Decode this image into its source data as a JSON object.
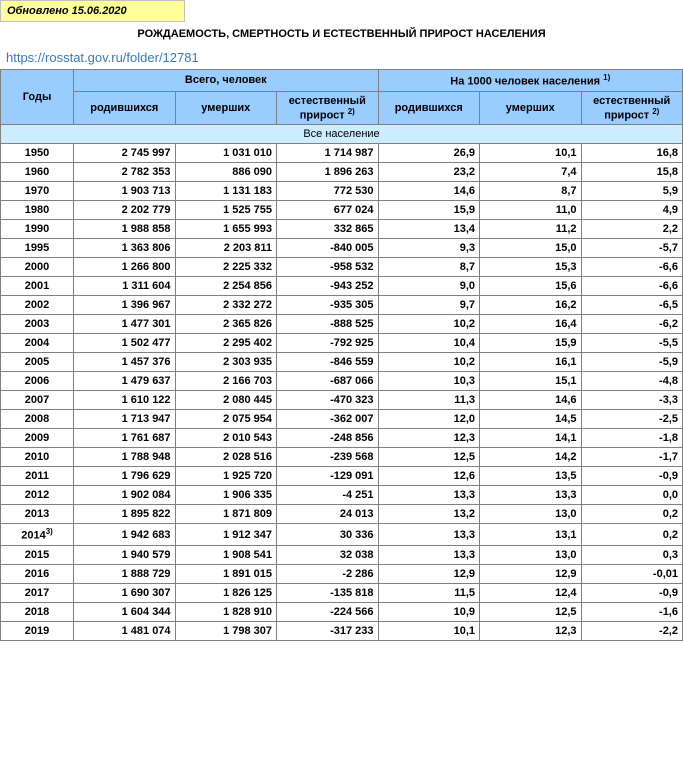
{
  "updated_label": "Обновлено 15.06.2020",
  "title": "РОЖДАЕМОСТЬ, СМЕРТНОСТЬ И ЕСТЕСТВЕННЫЙ ПРИРОСТ НАСЕЛЕНИЯ",
  "source_url": "https://rosstat.gov.ru/folder/12781",
  "header": {
    "years": "Годы",
    "total_people": "Всего, человек",
    "per_1000": "На 1000 человек населения",
    "born": "родившихся",
    "died": "умерших",
    "natural": "естественный прирост",
    "note1": "1)",
    "note2": "2)",
    "note3": "3)"
  },
  "section_label": "Все население",
  "rows": [
    {
      "year": "1950",
      "born": "2 745 997",
      "died": "1 031 010",
      "nat": "1 714 987",
      "rborn": "26,9",
      "rdied": "10,1",
      "rnat": "16,8"
    },
    {
      "year": "1960",
      "born": "2 782 353",
      "died": "886 090",
      "nat": "1 896 263",
      "rborn": "23,2",
      "rdied": "7,4",
      "rnat": "15,8"
    },
    {
      "year": "1970",
      "born": "1 903 713",
      "died": "1 131 183",
      "nat": "772 530",
      "rborn": "14,6",
      "rdied": "8,7",
      "rnat": "5,9"
    },
    {
      "year": "1980",
      "born": "2 202 779",
      "died": "1 525 755",
      "nat": "677 024",
      "rborn": "15,9",
      "rdied": "11,0",
      "rnat": "4,9"
    },
    {
      "year": "1990",
      "born": "1 988 858",
      "died": "1 655 993",
      "nat": "332 865",
      "rborn": "13,4",
      "rdied": "11,2",
      "rnat": "2,2"
    },
    {
      "year": "1995",
      "born": "1 363 806",
      "died": "2 203 811",
      "nat": "-840 005",
      "rborn": "9,3",
      "rdied": "15,0",
      "rnat": "-5,7"
    },
    {
      "year": "2000",
      "born": "1 266 800",
      "died": "2 225 332",
      "nat": "-958 532",
      "rborn": "8,7",
      "rdied": "15,3",
      "rnat": "-6,6"
    },
    {
      "year": "2001",
      "born": "1 311 604",
      "died": "2 254 856",
      "nat": "-943 252",
      "rborn": "9,0",
      "rdied": "15,6",
      "rnat": "-6,6"
    },
    {
      "year": "2002",
      "born": "1 396 967",
      "died": "2 332 272",
      "nat": "-935 305",
      "rborn": "9,7",
      "rdied": "16,2",
      "rnat": "-6,5"
    },
    {
      "year": "2003",
      "born": "1 477 301",
      "died": "2 365 826",
      "nat": "-888 525",
      "rborn": "10,2",
      "rdied": "16,4",
      "rnat": "-6,2"
    },
    {
      "year": "2004",
      "born": "1 502 477",
      "died": "2 295 402",
      "nat": "-792 925",
      "rborn": "10,4",
      "rdied": "15,9",
      "rnat": "-5,5"
    },
    {
      "year": "2005",
      "born": "1 457 376",
      "died": "2 303 935",
      "nat": "-846 559",
      "rborn": "10,2",
      "rdied": "16,1",
      "rnat": "-5,9"
    },
    {
      "year": "2006",
      "born": "1 479 637",
      "died": "2 166 703",
      "nat": "-687 066",
      "rborn": "10,3",
      "rdied": "15,1",
      "rnat": "-4,8"
    },
    {
      "year": "2007",
      "born": "1 610 122",
      "died": "2 080 445",
      "nat": "-470 323",
      "rborn": "11,3",
      "rdied": "14,6",
      "rnat": "-3,3"
    },
    {
      "year": "2008",
      "born": "1 713 947",
      "died": "2 075 954",
      "nat": "-362 007",
      "rborn": "12,0",
      "rdied": "14,5",
      "rnat": "-2,5"
    },
    {
      "year": "2009",
      "born": "1 761 687",
      "died": "2 010 543",
      "nat": "-248 856",
      "rborn": "12,3",
      "rdied": "14,1",
      "rnat": "-1,8"
    },
    {
      "year": "2010",
      "born": "1 788 948",
      "died": "2 028 516",
      "nat": "-239 568",
      "rborn": "12,5",
      "rdied": "14,2",
      "rnat": "-1,7"
    },
    {
      "year": "2011",
      "born": "1 796 629",
      "died": "1 925 720",
      "nat": "-129 091",
      "rborn": "12,6",
      "rdied": "13,5",
      "rnat": "-0,9"
    },
    {
      "year": "2012",
      "born": "1 902 084",
      "died": "1 906 335",
      "nat": "-4 251",
      "rborn": "13,3",
      "rdied": "13,3",
      "rnat": "0,0"
    },
    {
      "year": "2013",
      "born": "1 895 822",
      "died": "1 871 809",
      "nat": "24 013",
      "rborn": "13,2",
      "rdied": "13,0",
      "rnat": "0,2"
    },
    {
      "year": "2014",
      "year_note": "3)",
      "born": "1 942 683",
      "died": "1 912 347",
      "nat": "30 336",
      "rborn": "13,3",
      "rdied": "13,1",
      "rnat": "0,2"
    },
    {
      "year": "2015",
      "born": "1 940 579",
      "died": "1 908 541",
      "nat": "32 038",
      "rborn": "13,3",
      "rdied": "13,0",
      "rnat": "0,3"
    },
    {
      "year": "2016",
      "born": "1 888 729",
      "died": "1 891 015",
      "nat": "-2 286",
      "rborn": "12,9",
      "rdied": "12,9",
      "rnat": "-0,01"
    },
    {
      "year": "2017",
      "born": "1 690 307",
      "died": "1 826 125",
      "nat": "-135 818",
      "rborn": "11,5",
      "rdied": "12,4",
      "rnat": "-0,9"
    },
    {
      "year": "2018",
      "born": "1 604 344",
      "died": "1 828 910",
      "nat": "-224 566",
      "rborn": "10,9",
      "rdied": "12,5",
      "rnat": "-1,6"
    },
    {
      "year": "2019",
      "born": "1 481 074",
      "died": "1 798 307",
      "nat": "-317 233",
      "rborn": "10,1",
      "rdied": "12,3",
      "rnat": "-2,2"
    }
  ],
  "colors": {
    "update_bg": "#ffff99",
    "header_bg": "#99ccff",
    "section_bg": "#ccecff",
    "link_color": "#3b7ab5",
    "border": "#808080"
  }
}
